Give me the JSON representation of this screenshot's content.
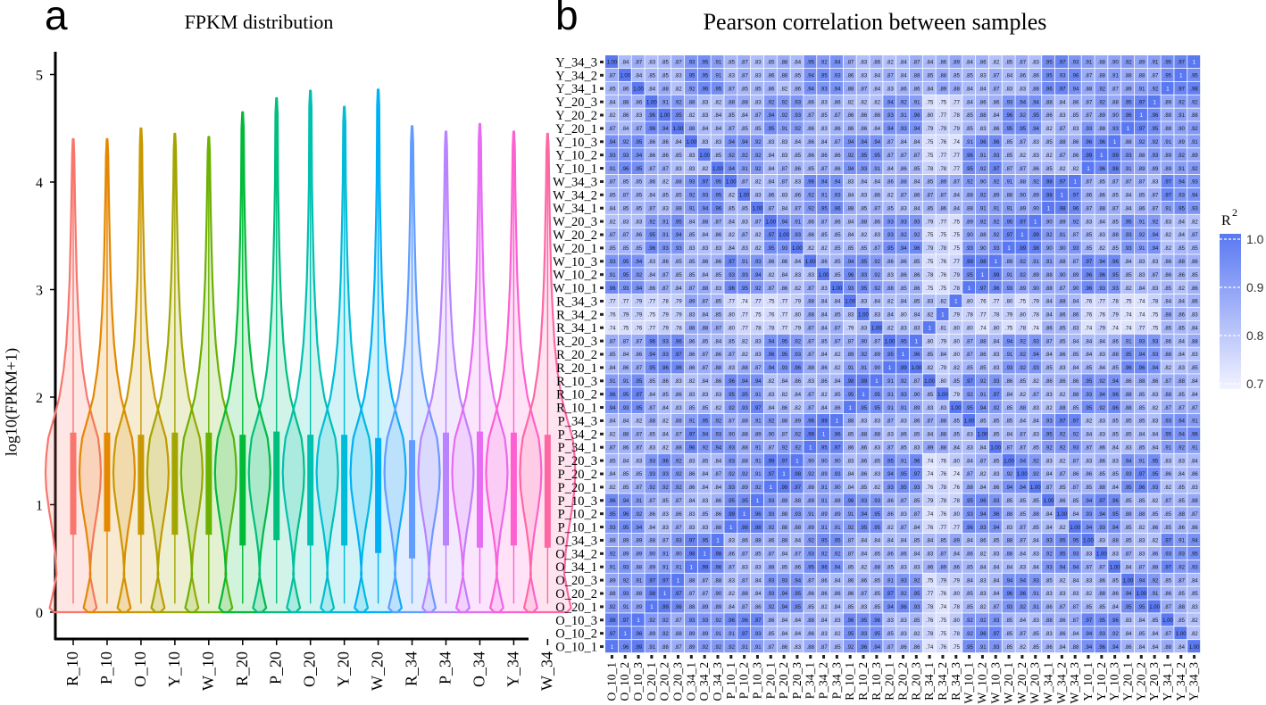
{
  "chart_data": [
    {
      "panel": "a",
      "type": "violin",
      "title": "FPKM distribution",
      "xlabel": "",
      "ylabel": "log10(FPKM+1)",
      "ylim": [
        0,
        5.1
      ],
      "yticks": [
        0,
        1,
        2,
        3,
        4,
        5
      ],
      "categories": [
        "R_10",
        "P_10",
        "O_10",
        "Y_10",
        "W_10",
        "R_20",
        "P_20",
        "O_20",
        "Y_20",
        "W_20",
        "R_34",
        "P_34",
        "O_34",
        "Y_34",
        "W_34"
      ],
      "colors": [
        "#F8766D",
        "#E58700",
        "#C99800",
        "#A3A500",
        "#6BB100",
        "#00BA38",
        "#00BF7D",
        "#00C0AF",
        "#00BCD8",
        "#00B0F6",
        "#619CFF",
        "#B983FF",
        "#E76BF3",
        "#FD61D1",
        "#FF67A4"
      ],
      "max": [
        4.4,
        4.4,
        4.5,
        4.45,
        4.42,
        4.65,
        4.78,
        4.85,
        4.7,
        4.86,
        4.52,
        4.47,
        4.54,
        4.47,
        4.45
      ],
      "q1": [
        0.72,
        0.75,
        0.72,
        0.72,
        0.72,
        0.62,
        0.67,
        0.62,
        0.62,
        0.55,
        0.5,
        0.62,
        0.6,
        0.62,
        0.6
      ],
      "q3": [
        1.67,
        1.67,
        1.65,
        1.67,
        1.67,
        1.65,
        1.68,
        1.65,
        1.65,
        1.62,
        1.6,
        1.67,
        1.68,
        1.67,
        1.65
      ],
      "median": [
        1.3,
        1.3,
        1.3,
        1.3,
        1.3,
        1.25,
        1.3,
        1.25,
        1.25,
        1.2,
        1.15,
        1.25,
        1.25,
        1.25,
        1.25
      ]
    },
    {
      "panel": "b",
      "type": "heatmap",
      "title": "Pearson correlation between samples",
      "row_labels": [
        "Y_34_3",
        "Y_34_2",
        "Y_34_1",
        "Y_20_3",
        "Y_20_2",
        "Y_20_1",
        "Y_10_3",
        "Y_10_2",
        "Y_10_1",
        "W_34_3",
        "W_34_2",
        "W_34_1",
        "W_20_3",
        "W_20_2",
        "W_20_1",
        "W_10_3",
        "W_10_2",
        "W_10_1",
        "R_34_3",
        "R_34_2",
        "R_34_1",
        "R_20_3",
        "R_20_2",
        "R_20_1",
        "R_10_3",
        "R_10_2",
        "R_10_1",
        "P_34_3",
        "P_34_2",
        "P_34_1",
        "P_20_3",
        "P_20_2",
        "P_20_1",
        "P_10_3",
        "P_10_2",
        "P_10_1",
        "O_34_3",
        "O_34_2",
        "O_34_1",
        "O_20_3",
        "O_20_2",
        "O_20_1",
        "O_10_3",
        "O_10_2",
        "O_10_1"
      ],
      "col_labels": [
        "O_10_1",
        "O_10_2",
        "O_10_3",
        "O_20_1",
        "O_20_2",
        "O_20_3",
        "O_34_1",
        "O_34_2",
        "O_34_3",
        "P_10_1",
        "P_10_2",
        "P_10_3",
        "P_20_1",
        "P_20_2",
        "P_20_3",
        "P_34_1",
        "P_34_2",
        "P_34_3",
        "R_10_1",
        "R_10_2",
        "R_10_3",
        "R_20_1",
        "R_20_2",
        "R_20_3",
        "R_34_1",
        "R_34_2",
        "R_34_3",
        "W_10_1",
        "W_10_2",
        "W_10_3",
        "W_20_1",
        "W_20_2",
        "W_20_3",
        "W_34_1",
        "W_34_2",
        "W_34_3",
        "Y_10_1",
        "Y_10_2",
        "Y_10_3",
        "Y_20_1",
        "Y_20_2",
        "Y_20_3",
        "Y_34_1",
        "Y_34_2",
        "Y_34_3"
      ],
      "value_range": [
        0.7,
        1.0
      ],
      "cell_values_note": "r² values 0.70–1.0 printed in each cell; diagonal = 1",
      "legend": {
        "title": "R",
        "title_superscript": "2",
        "ticks": [
          "1.0",
          "0.9",
          "0.8",
          "0.7"
        ],
        "tick_values": [
          1.0,
          0.9,
          0.8,
          0.7
        ],
        "color_low": "#f2f3ff",
        "color_high": "#5a78f2"
      }
    }
  ]
}
